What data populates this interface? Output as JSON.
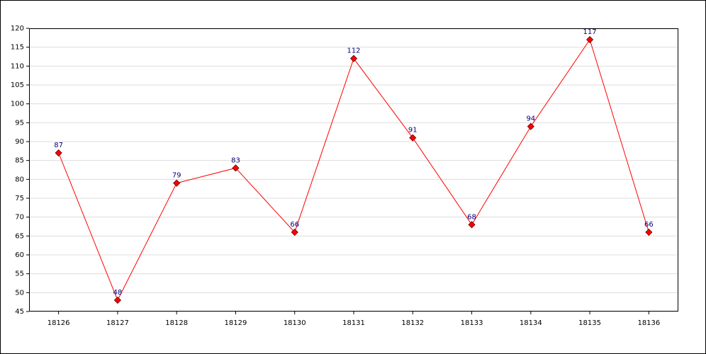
{
  "chart_data": {
    "type": "line",
    "categories": [
      "18126",
      "18127",
      "18128",
      "18129",
      "18130",
      "18131",
      "18132",
      "18133",
      "18134",
      "18135",
      "18136"
    ],
    "values": [
      87,
      48,
      79,
      83,
      66,
      112,
      91,
      68,
      94,
      117,
      66
    ],
    "color": "#ff0000",
    "ylim": [
      45,
      120
    ],
    "yticks": [
      45,
      50,
      55,
      60,
      65,
      70,
      75,
      80,
      85,
      90,
      95,
      100,
      105,
      110,
      115,
      120
    ],
    "grid": true
  }
}
